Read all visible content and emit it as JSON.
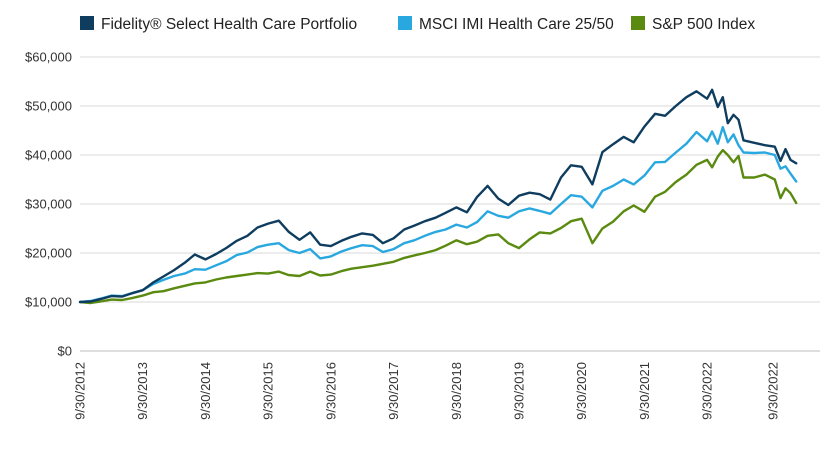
{
  "chart_data": {
    "type": "line",
    "title": "",
    "xlabel": "",
    "ylabel": "",
    "ylim": [
      0,
      60000
    ],
    "y_ticks": [
      {
        "value": 0,
        "label": "$0"
      },
      {
        "value": 10000,
        "label": "$10,000"
      },
      {
        "value": 20000,
        "label": "$20,000"
      },
      {
        "value": 30000,
        "label": "$30,000"
      },
      {
        "value": 40000,
        "label": "$40,000"
      },
      {
        "value": 50000,
        "label": "$50,000"
      },
      {
        "value": 60000,
        "label": "$60,000"
      }
    ],
    "x_ticks": [
      {
        "value": 2012.75,
        "label": "9/30/2012"
      },
      {
        "value": 2013.75,
        "label": "9/30/2013"
      },
      {
        "value": 2014.75,
        "label": "9/30/2014"
      },
      {
        "value": 2015.75,
        "label": "9/30/2015"
      },
      {
        "value": 2016.75,
        "label": "9/30/2016"
      },
      {
        "value": 2017.75,
        "label": "9/30/2017"
      },
      {
        "value": 2018.75,
        "label": "9/30/2018"
      },
      {
        "value": 2019.75,
        "label": "9/30/2019"
      },
      {
        "value": 2020.75,
        "label": "9/30/2020"
      },
      {
        "value": 2021.75,
        "label": "9/30/2021"
      },
      {
        "value": 2022.75,
        "label": "9/30/2022"
      },
      {
        "value": 23.8,
        "label": "9/30/2022"
      }
    ],
    "grid": "horizontal",
    "legend": "top",
    "series": [
      {
        "name": "Fidelity® Select Health Care Portfolio",
        "color": "#0e3d5f",
        "points": [
          [
            2012.75,
            10000
          ],
          [
            2012.92,
            10100
          ],
          [
            2013.08,
            10600
          ],
          [
            2013.25,
            11200
          ],
          [
            2013.42,
            11100
          ],
          [
            2013.58,
            11800
          ],
          [
            2013.75,
            12400
          ],
          [
            2013.92,
            14000
          ],
          [
            2014.08,
            15200
          ],
          [
            2014.25,
            16500
          ],
          [
            2014.42,
            18000
          ],
          [
            2014.58,
            19700
          ],
          [
            2014.75,
            18700
          ],
          [
            2014.92,
            19800
          ],
          [
            2015.08,
            21000
          ],
          [
            2015.25,
            22500
          ],
          [
            2015.42,
            23500
          ],
          [
            2015.58,
            25200
          ],
          [
            2015.75,
            26000
          ],
          [
            2015.92,
            26600
          ],
          [
            2016.08,
            24300
          ],
          [
            2016.25,
            22700
          ],
          [
            2016.42,
            24200
          ],
          [
            2016.58,
            21700
          ],
          [
            2016.75,
            21400
          ],
          [
            2016.92,
            22500
          ],
          [
            2017.08,
            23300
          ],
          [
            2017.25,
            24000
          ],
          [
            2017.42,
            23700
          ],
          [
            2017.58,
            22000
          ],
          [
            2017.75,
            23000
          ],
          [
            2017.92,
            24800
          ],
          [
            2018.08,
            25600
          ],
          [
            2018.25,
            26500
          ],
          [
            2018.42,
            27200
          ],
          [
            2018.58,
            28200
          ],
          [
            2018.75,
            29300
          ],
          [
            2018.92,
            28300
          ],
          [
            2019.08,
            31400
          ],
          [
            2019.25,
            33700
          ],
          [
            2019.42,
            31100
          ],
          [
            2019.58,
            29800
          ],
          [
            2019.75,
            31700
          ],
          [
            2019.92,
            32300
          ],
          [
            2020.08,
            32000
          ],
          [
            2020.25,
            30900
          ],
          [
            2020.42,
            35400
          ],
          [
            2020.58,
            37900
          ],
          [
            2020.75,
            37600
          ],
          [
            2020.92,
            34000
          ],
          [
            2021.08,
            40600
          ],
          [
            2021.25,
            42200
          ],
          [
            2021.42,
            43700
          ],
          [
            2021.58,
            42600
          ],
          [
            2021.75,
            45800
          ],
          [
            2021.92,
            48400
          ],
          [
            2022.08,
            48000
          ],
          [
            2022.25,
            50000
          ],
          [
            2022.42,
            51800
          ],
          [
            2022.58,
            53000
          ],
          [
            2022.75,
            51500
          ],
          [
            2022.83,
            53300
          ],
          [
            2022.92,
            49800
          ],
          [
            2023.0,
            51800
          ],
          [
            2023.08,
            46500
          ],
          [
            2023.17,
            48200
          ],
          [
            2023.25,
            47200
          ],
          [
            2023.33,
            43000
          ],
          [
            2023.5,
            42500
          ],
          [
            2023.67,
            42000
          ],
          [
            2023.83,
            41700
          ],
          [
            2023.92,
            38800
          ],
          [
            2024.0,
            41200
          ],
          [
            2024.08,
            39000
          ],
          [
            2024.17,
            38300
          ]
        ]
      },
      {
        "name": "MSCI IMI Health Care 25/50",
        "color": "#29a8e0",
        "points": [
          [
            2012.75,
            10000
          ],
          [
            2012.92,
            10200
          ],
          [
            2013.08,
            10700
          ],
          [
            2013.25,
            11300
          ],
          [
            2013.42,
            11200
          ],
          [
            2013.58,
            11800
          ],
          [
            2013.75,
            12400
          ],
          [
            2013.92,
            13700
          ],
          [
            2014.08,
            14500
          ],
          [
            2014.25,
            15300
          ],
          [
            2014.42,
            15800
          ],
          [
            2014.58,
            16700
          ],
          [
            2014.75,
            16600
          ],
          [
            2014.92,
            17500
          ],
          [
            2015.08,
            18300
          ],
          [
            2015.25,
            19600
          ],
          [
            2015.42,
            20100
          ],
          [
            2015.58,
            21200
          ],
          [
            2015.75,
            21700
          ],
          [
            2015.92,
            22000
          ],
          [
            2016.08,
            20600
          ],
          [
            2016.25,
            20000
          ],
          [
            2016.42,
            20800
          ],
          [
            2016.58,
            18900
          ],
          [
            2016.75,
            19300
          ],
          [
            2016.92,
            20300
          ],
          [
            2017.08,
            21000
          ],
          [
            2017.25,
            21600
          ],
          [
            2017.42,
            21400
          ],
          [
            2017.58,
            20200
          ],
          [
            2017.75,
            20800
          ],
          [
            2017.92,
            22000
          ],
          [
            2018.08,
            22600
          ],
          [
            2018.25,
            23500
          ],
          [
            2018.42,
            24300
          ],
          [
            2018.58,
            24800
          ],
          [
            2018.75,
            25800
          ],
          [
            2018.92,
            25200
          ],
          [
            2019.08,
            26300
          ],
          [
            2019.25,
            28500
          ],
          [
            2019.42,
            27600
          ],
          [
            2019.58,
            27200
          ],
          [
            2019.75,
            28500
          ],
          [
            2019.92,
            29100
          ],
          [
            2020.08,
            28600
          ],
          [
            2020.25,
            28000
          ],
          [
            2020.42,
            30000
          ],
          [
            2020.58,
            31800
          ],
          [
            2020.75,
            31500
          ],
          [
            2020.92,
            29300
          ],
          [
            2021.08,
            32700
          ],
          [
            2021.25,
            33700
          ],
          [
            2021.42,
            35000
          ],
          [
            2021.58,
            34000
          ],
          [
            2021.75,
            35800
          ],
          [
            2021.92,
            38500
          ],
          [
            2022.08,
            38600
          ],
          [
            2022.25,
            40500
          ],
          [
            2022.42,
            42300
          ],
          [
            2022.58,
            44700
          ],
          [
            2022.75,
            42800
          ],
          [
            2022.83,
            44800
          ],
          [
            2022.92,
            42300
          ],
          [
            2023.0,
            45700
          ],
          [
            2023.08,
            42600
          ],
          [
            2023.17,
            44200
          ],
          [
            2023.25,
            42000
          ],
          [
            2023.33,
            40500
          ],
          [
            2023.5,
            40400
          ],
          [
            2023.67,
            40500
          ],
          [
            2023.83,
            40000
          ],
          [
            2023.92,
            37200
          ],
          [
            2024.0,
            37700
          ],
          [
            2024.08,
            36200
          ],
          [
            2024.17,
            34600
          ]
        ]
      },
      {
        "name": "S&P 500 Index",
        "color": "#5a8a0f",
        "points": [
          [
            2012.75,
            10000
          ],
          [
            2012.92,
            9800
          ],
          [
            2013.08,
            10100
          ],
          [
            2013.25,
            10500
          ],
          [
            2013.42,
            10400
          ],
          [
            2013.58,
            10800
          ],
          [
            2013.75,
            11300
          ],
          [
            2013.92,
            12000
          ],
          [
            2014.08,
            12200
          ],
          [
            2014.25,
            12800
          ],
          [
            2014.42,
            13300
          ],
          [
            2014.58,
            13800
          ],
          [
            2014.75,
            14000
          ],
          [
            2014.92,
            14600
          ],
          [
            2015.08,
            15000
          ],
          [
            2015.25,
            15300
          ],
          [
            2015.42,
            15600
          ],
          [
            2015.58,
            15900
          ],
          [
            2015.75,
            15800
          ],
          [
            2015.92,
            16200
          ],
          [
            2016.08,
            15500
          ],
          [
            2016.25,
            15300
          ],
          [
            2016.42,
            16200
          ],
          [
            2016.58,
            15400
          ],
          [
            2016.75,
            15600
          ],
          [
            2016.92,
            16300
          ],
          [
            2017.08,
            16800
          ],
          [
            2017.25,
            17100
          ],
          [
            2017.42,
            17400
          ],
          [
            2017.58,
            17800
          ],
          [
            2017.75,
            18200
          ],
          [
            2017.92,
            19000
          ],
          [
            2018.08,
            19500
          ],
          [
            2018.25,
            20000
          ],
          [
            2018.42,
            20600
          ],
          [
            2018.58,
            21500
          ],
          [
            2018.75,
            22600
          ],
          [
            2018.92,
            21800
          ],
          [
            2019.08,
            22300
          ],
          [
            2019.25,
            23500
          ],
          [
            2019.42,
            23800
          ],
          [
            2019.58,
            22000
          ],
          [
            2019.75,
            21000
          ],
          [
            2019.92,
            22800
          ],
          [
            2020.08,
            24200
          ],
          [
            2020.25,
            24000
          ],
          [
            2020.42,
            25100
          ],
          [
            2020.58,
            26500
          ],
          [
            2020.75,
            27000
          ],
          [
            2020.92,
            22000
          ],
          [
            2021.08,
            25000
          ],
          [
            2021.25,
            26400
          ],
          [
            2021.42,
            28500
          ],
          [
            2021.58,
            29700
          ],
          [
            2021.75,
            28400
          ],
          [
            2021.92,
            31500
          ],
          [
            2022.08,
            32500
          ],
          [
            2022.25,
            34500
          ],
          [
            2022.42,
            36000
          ],
          [
            2022.58,
            38000
          ],
          [
            2022.75,
            39000
          ],
          [
            2022.83,
            37500
          ],
          [
            2022.92,
            39700
          ],
          [
            2023.0,
            41000
          ],
          [
            2023.08,
            40000
          ],
          [
            2023.17,
            38500
          ],
          [
            2023.25,
            39800
          ],
          [
            2023.33,
            35400
          ],
          [
            2023.5,
            35400
          ],
          [
            2023.67,
            36000
          ],
          [
            2023.83,
            35000
          ],
          [
            2023.92,
            31200
          ],
          [
            2024.0,
            33200
          ],
          [
            2024.08,
            32200
          ],
          [
            2024.17,
            30200
          ]
        ]
      }
    ]
  }
}
